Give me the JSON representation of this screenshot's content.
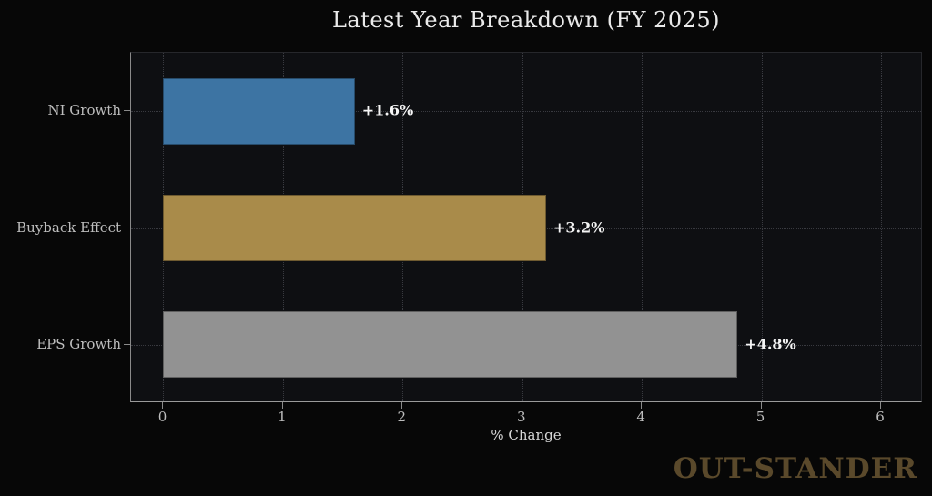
{
  "title": "Latest Year Breakdown (FY 2025)",
  "watermark": "OUT-STANDER",
  "chart_data": {
    "type": "bar",
    "orientation": "horizontal",
    "title": "Latest Year Breakdown (FY 2025)",
    "xlabel": "% Change",
    "ylabel": "",
    "categories": [
      "NI Growth",
      "Buyback Effect",
      "EPS Growth"
    ],
    "values": [
      1.6,
      3.2,
      4.8
    ],
    "bar_labels": [
      "+1.6%",
      "+3.2%",
      "+4.8%"
    ],
    "bar_colors": [
      "#3d74a3",
      "#a98b4a",
      "#929292"
    ],
    "x_ticks": [
      "0",
      "1",
      "2",
      "3",
      "4",
      "5",
      "6"
    ],
    "x_tick_values": [
      0,
      1,
      2,
      3,
      4,
      5,
      6
    ],
    "xlim": [
      -0.27,
      6.35
    ],
    "grid": true,
    "grid_style": "dotted",
    "legend": "none",
    "colors": {
      "page_background": "#070707",
      "plot_background": "#0e0f12",
      "grid_color": "#393a40",
      "axis_color": "#8a8a8a",
      "title_color": "#eaeaea",
      "tick_label_color": "#bdbdbd",
      "value_label_color": "#f5f5f5",
      "watermark_color": "#5a492b"
    }
  }
}
